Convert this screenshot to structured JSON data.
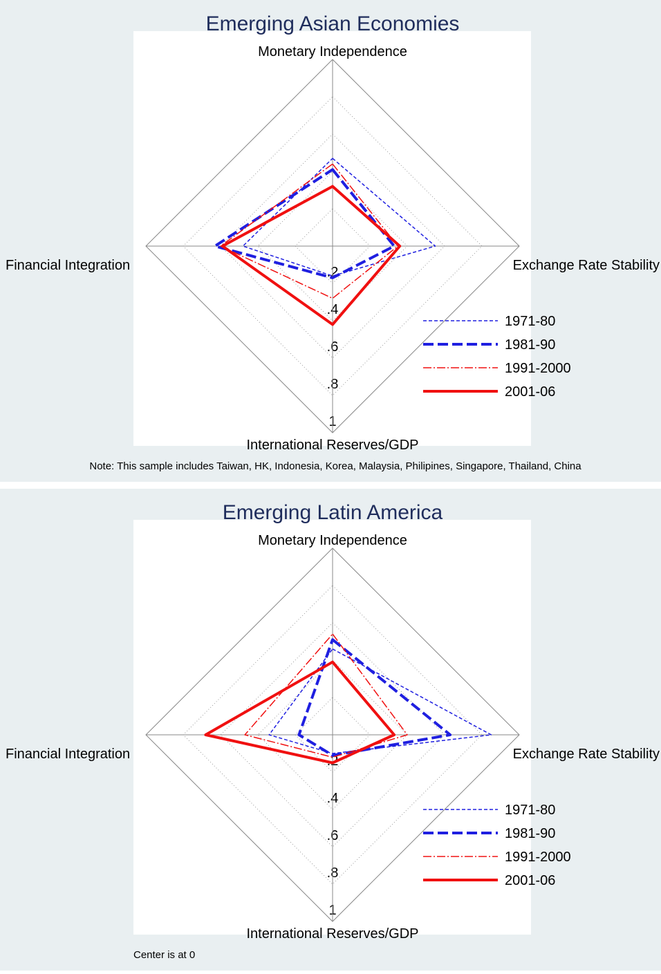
{
  "chart_data": [
    {
      "type": "radar",
      "title": "Emerging Asian Economies",
      "categories": [
        "Monetary Independence",
        "Exchange Rate Stability",
        "International Reserves/GDP",
        "Financial Integration"
      ],
      "rlim": [
        0,
        1
      ],
      "rticks": [
        {
          "value": 0.2,
          "label": ".2"
        },
        {
          "value": 0.4,
          "label": ".4"
        },
        {
          "value": 0.6,
          "label": ".6"
        },
        {
          "value": 0.8,
          "label": ".8"
        },
        1
      ],
      "grid": true,
      "legend": "lower right",
      "series": [
        {
          "name": "1971-80",
          "color": "#1f1fe0",
          "linestyle": "dash",
          "width": 1.5,
          "values": [
            0.47,
            0.55,
            0.16,
            0.48
          ]
        },
        {
          "name": "1981-90",
          "color": "#1f1fe0",
          "linestyle": "longdash",
          "width": 4,
          "values": [
            0.41,
            0.33,
            0.17,
            0.63
          ]
        },
        {
          "name": "1991-2000",
          "color": "#f01010",
          "linestyle": "dashdot",
          "width": 1.5,
          "values": [
            0.44,
            0.35,
            0.28,
            0.6
          ]
        },
        {
          "name": "2001-06",
          "color": "#f01010",
          "linestyle": "solid",
          "width": 4,
          "values": [
            0.32,
            0.36,
            0.42,
            0.59
          ]
        }
      ],
      "note": "Note: This sample includes Taiwan, HK, Indonesia, Korea, Malaysia, Philipines, Singapore, Thailand, China"
    },
    {
      "type": "radar",
      "title": "Emerging Latin America",
      "categories": [
        "Monetary Independence",
        "Exchange Rate Stability",
        "International Reserves/GDP",
        "Financial Integration"
      ],
      "rlim": [
        0,
        1
      ],
      "rticks": [
        {
          "value": 0.2,
          "label": ".2"
        },
        {
          "value": 0.4,
          "label": ".4"
        },
        {
          "value": 0.6,
          "label": ".6"
        },
        {
          "value": 0.8,
          "label": ".8"
        },
        1
      ],
      "grid": true,
      "legend": "lower right",
      "series": [
        {
          "name": "1971-80",
          "color": "#1f1fe0",
          "linestyle": "dash",
          "width": 1.5,
          "values": [
            0.46,
            0.85,
            0.1,
            0.34
          ]
        },
        {
          "name": "1981-90",
          "color": "#1f1fe0",
          "linestyle": "longdash",
          "width": 4,
          "values": [
            0.51,
            0.63,
            0.11,
            0.18
          ]
        },
        {
          "name": "1991-2000",
          "color": "#f01010",
          "linestyle": "dashdot",
          "width": 1.5,
          "values": [
            0.54,
            0.4,
            0.12,
            0.47
          ]
        },
        {
          "name": "2001-06",
          "color": "#f01010",
          "linestyle": "solid",
          "width": 4,
          "values": [
            0.39,
            0.33,
            0.15,
            0.68
          ]
        }
      ],
      "note": "Center is at 0"
    }
  ]
}
